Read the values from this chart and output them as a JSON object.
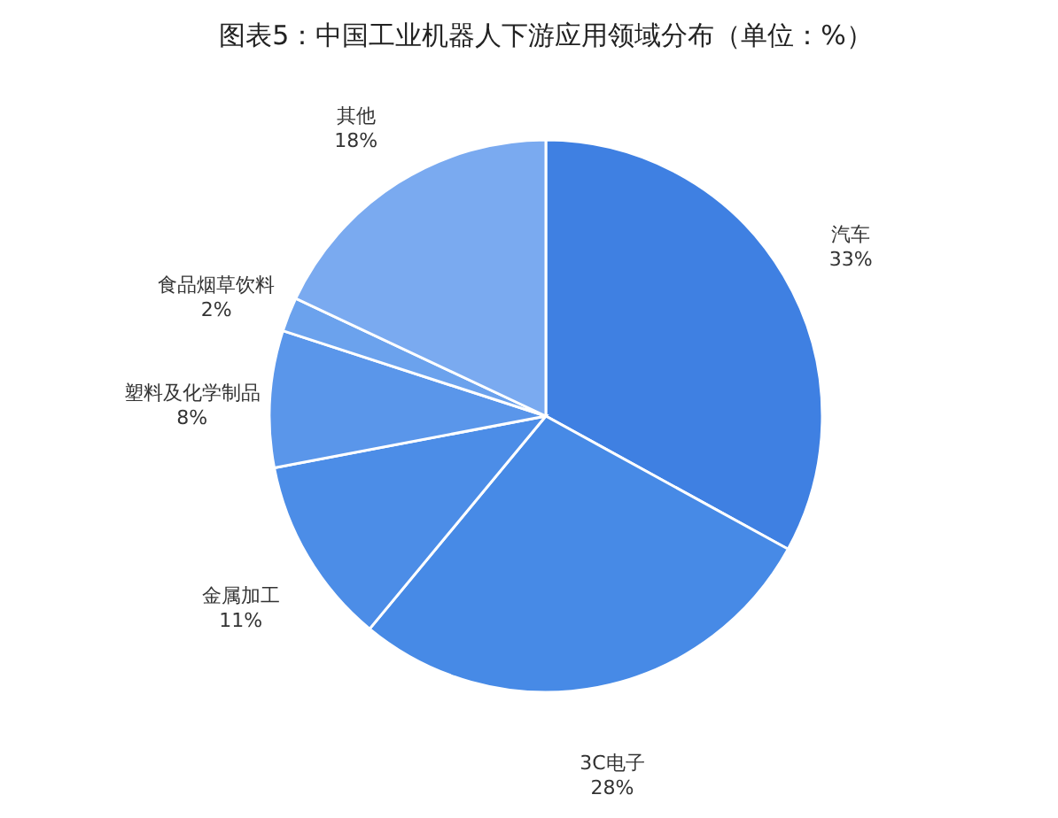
{
  "chart_data": {
    "type": "pie",
    "title": "图表5：中国工业机器人下游应用领域分布（单位：%）",
    "categories": [
      "汽车",
      "3C电子",
      "金属加工",
      "塑料及化学制品",
      "食品烟草饮料",
      "其他"
    ],
    "values": [
      33,
      28,
      11,
      8,
      2,
      18
    ],
    "value_labels": [
      "33%",
      "28%",
      "11%",
      "8%",
      "2%",
      "18%"
    ],
    "colors": [
      "#3f80e2",
      "#478ae6",
      "#4c8de7",
      "#5a96ea",
      "#6ba2ed",
      "#7aaaf0"
    ],
    "legend": false
  }
}
